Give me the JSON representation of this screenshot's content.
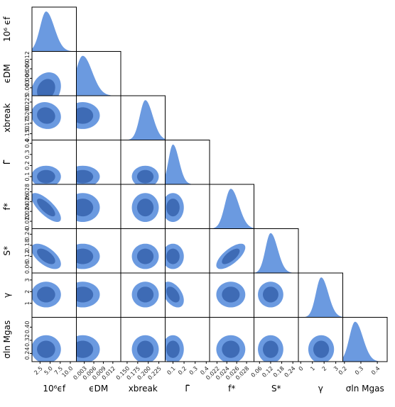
{
  "chart_data": {
    "type": "corner",
    "colors": {
      "outer": "#6b9ae0",
      "inner": "#3e6bb5",
      "frame": "#000000"
    },
    "parameters": [
      {
        "label": "10⁶ϵf",
        "ylabel": "10⁶ ϵf",
        "range": [
          0.5,
          11.5
        ],
        "mean": 4.0,
        "sd": 1.5,
        "xticks": [
          "2.5",
          "5.0",
          "7.5",
          "10.0"
        ],
        "yticks": []
      },
      {
        "label": "ϵDM",
        "ylabel": "ϵDM",
        "range": [
          0.0005,
          0.0145
        ],
        "mean": 0.0025,
        "sd": 0.0022,
        "xticks": [
          "0.003",
          "0.006",
          "0.009",
          "0.012"
        ],
        "yticks": [
          "0.003",
          "0.006",
          "0.009",
          "0.012"
        ]
      },
      {
        "label": "xbreak",
        "ylabel": "xbreak",
        "range": [
          0.135,
          0.24
        ],
        "mean": 0.193,
        "sd": 0.013,
        "xticks": [
          "0.150",
          "0.175",
          "0.200",
          "0.225"
        ],
        "yticks": [
          "0.150",
          "0.175",
          "0.200",
          "0.225"
        ]
      },
      {
        "label": "Γ̃",
        "ylabel": "Γ̃",
        "range": [
          0.03,
          0.43
        ],
        "mean": 0.1,
        "sd": 0.04,
        "xticks": [
          "0.1",
          "0.2",
          "0.3",
          "0.4"
        ],
        "yticks": [
          "0.1",
          "0.2",
          "0.3",
          "0.4"
        ]
      },
      {
        "label": "f*",
        "ylabel": "f*",
        "range": [
          0.0205,
          0.0295
        ],
        "mean": 0.0248,
        "sd": 0.0012,
        "xticks": [
          "0.022",
          "0.024",
          "0.026",
          "0.028"
        ],
        "yticks": [
          "0.022",
          "0.024",
          "0.026",
          "0.028"
        ]
      },
      {
        "label": "S*",
        "ylabel": "S*",
        "range": [
          0.03,
          0.27
        ],
        "mean": 0.12,
        "sd": 0.028,
        "xticks": [
          "0.06",
          "0.12",
          "0.18",
          "0.24"
        ],
        "yticks": [
          "0.06",
          "0.12",
          "0.18",
          "0.24"
        ]
      },
      {
        "label": "γ",
        "ylabel": "γ",
        "range": [
          -0.2,
          3.6
        ],
        "mean": 1.75,
        "sd": 0.45,
        "xticks": [
          "0",
          "1",
          "2",
          "3"
        ],
        "yticks": [
          "1",
          "2",
          "3"
        ]
      },
      {
        "label": "σln Mgas",
        "ylabel": "σln Mgas",
        "range": [
          0.19,
          0.46
        ],
        "mean": 0.265,
        "sd": 0.035,
        "xticks": [
          "0.2",
          "0.3",
          "0.4"
        ],
        "yticks": [
          "0.24",
          "0.32",
          "0.40"
        ]
      }
    ],
    "correlations": [
      {
        "i": 4,
        "j": 0,
        "rho": -0.75
      },
      {
        "i": 5,
        "j": 0,
        "rho": -0.6
      },
      {
        "i": 5,
        "j": 4,
        "rho": 0.7
      },
      {
        "i": 6,
        "j": 3,
        "rho": -0.45
      },
      {
        "i": 2,
        "j": 0,
        "rho": -0.1
      },
      {
        "i": 1,
        "j": 0,
        "rho": 0.2
      }
    ],
    "levels": [
      "68%",
      "95%"
    ]
  }
}
